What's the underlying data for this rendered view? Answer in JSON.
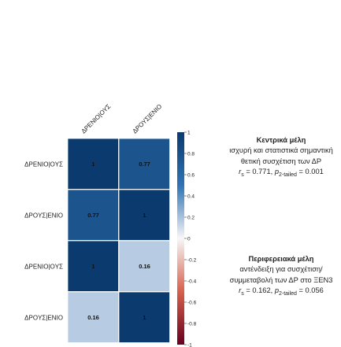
{
  "chart_data": [
    {
      "type": "heatmap",
      "column_labels": [
        "ΔPΕΝΙΟ|ΟΥΣ",
        "ΔPΟΥΣ|ΕΝΙΟ"
      ],
      "row_labels": [
        "ΔPENIO|OYΣ",
        "ΔPOYΣ|ENIO"
      ],
      "cells": [
        [
          1,
          0.77
        ],
        [
          0.77,
          1
        ]
      ]
    },
    {
      "type": "heatmap",
      "column_labels": [],
      "row_labels": [
        "ΔPENIO|OYΣ",
        "ΔPOYΣ|ENIO"
      ],
      "cells": [
        [
          1,
          0.16
        ],
        [
          0.16,
          1
        ]
      ]
    }
  ],
  "colorbar": {
    "ticks": [
      "1",
      "0.8",
      "0.6",
      "0.4",
      "0.2",
      "0",
      "-0.2",
      "-0.4",
      "-0.6",
      "-0.8",
      "-1"
    ],
    "range": [
      -1,
      1
    ],
    "colors": {
      "pos_strong": "#0b3a6e",
      "pos_mid": "#2f72b4",
      "neutral": "#f7f7f7",
      "neg_mid": "#d6604d",
      "neg_strong": "#67001f"
    }
  },
  "panels": [
    {
      "title": "Κεντρικά μέλη",
      "lines": [
        "ισχυρή και στατιστικά σημαντική",
        "θετική συσχέτιση των ΔP"
      ],
      "r_label": "r",
      "r_sub": "s",
      "r_value": " = 0.771, ",
      "p_label": "p",
      "p_sub": "2-tailed",
      "p_value": " = 0.001"
    },
    {
      "title": "Περιφερειακά μέλη",
      "lines": [
        "αντένδειξη για συσχέτιση/",
        "συμμεταβολή των ΔP στο ΞΕΝ3"
      ],
      "r_label": "r",
      "r_sub": "s",
      "r_value": " = 0.162, ",
      "p_label": "p",
      "p_sub": "2-tailed",
      "p_value": " = 0.056"
    }
  ]
}
